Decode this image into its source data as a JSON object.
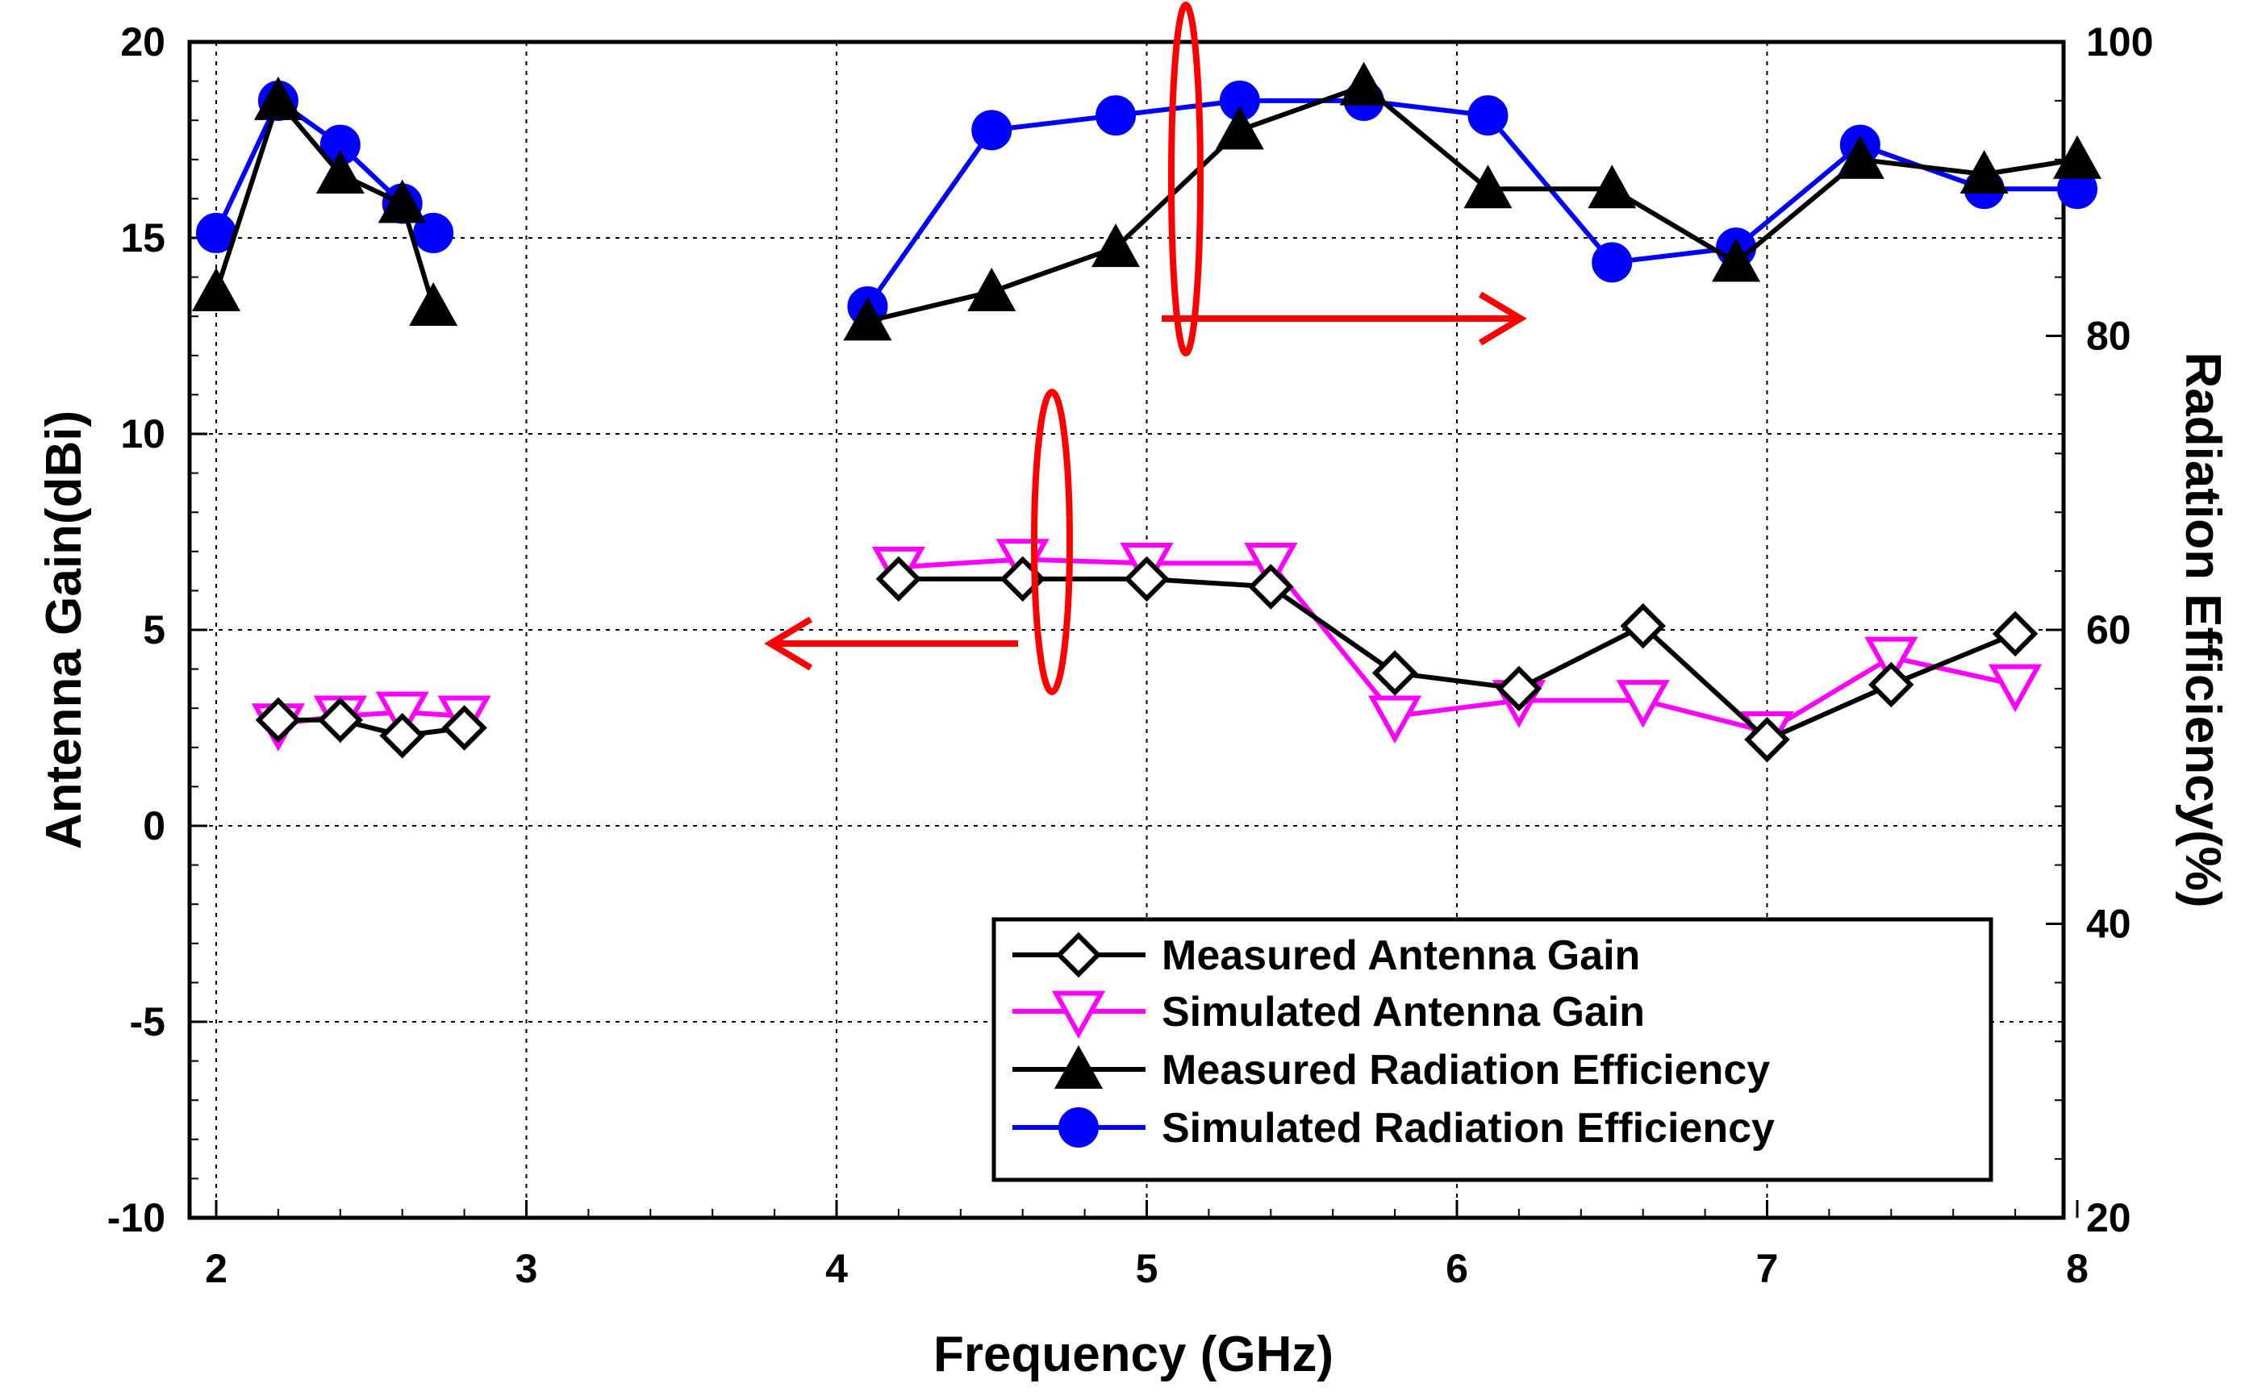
{
  "chart_data": {
    "type": "line",
    "xlabel": "Frequency (GHz)",
    "ylabel_left": "Antenna Gain(dBi)",
    "ylabel_right": "Radiation Efficiency(%)",
    "xlim": [
      2,
      8
    ],
    "ylim_left": [
      -10,
      20
    ],
    "ylim_right": [
      20,
      100
    ],
    "x_ticks": [
      "2",
      "3",
      "4",
      "5",
      "6",
      "7",
      "8"
    ],
    "y_left_ticks": [
      "20",
      "15",
      "10",
      "5",
      "0",
      "-5",
      "-10"
    ],
    "y_right_ticks": [
      "100",
      "80",
      "60",
      "40",
      "20"
    ],
    "grid": true,
    "legend_position": "bottom-right",
    "series": [
      {
        "name": "Measured Antenna Gain",
        "axis": "left",
        "color": "#000000",
        "marker": "diamond",
        "segments": [
          {
            "x": [
              2.2,
              2.4,
              2.6,
              2.8
            ],
            "y": [
              2.7,
              2.7,
              2.3,
              2.5
            ]
          },
          {
            "x": [
              4.2,
              4.6,
              5.0,
              5.4,
              5.8,
              6.2,
              6.6,
              7.0,
              7.4,
              7.8
            ],
            "y": [
              6.3,
              6.3,
              6.3,
              6.1,
              3.9,
              3.5,
              5.1,
              2.2,
              3.6,
              4.9
            ]
          }
        ]
      },
      {
        "name": "Simulated Antenna Gain",
        "axis": "left",
        "color": "#ff00ff",
        "marker": "triangle-down",
        "segments": [
          {
            "x": [
              2.2,
              2.4,
              2.6,
              2.8
            ],
            "y": [
              2.6,
              2.8,
              2.9,
              2.8
            ]
          },
          {
            "x": [
              4.2,
              4.6,
              5.0,
              5.4,
              5.8,
              6.2,
              6.6,
              7.0,
              7.4,
              7.8
            ],
            "y": [
              6.6,
              6.8,
              6.7,
              6.7,
              2.8,
              3.2,
              3.2,
              2.4,
              4.3,
              3.6
            ]
          }
        ]
      },
      {
        "name": "Measured Radiation Efficiency",
        "axis": "right",
        "color": "#000000",
        "marker": "triangle-up",
        "segments": [
          {
            "x": [
              2.0,
              2.2,
              2.4,
              2.6,
              2.7
            ],
            "y": [
              83,
              96,
              91,
              89,
              82
            ]
          },
          {
            "x": [
              4.1,
              4.5,
              4.9,
              5.3,
              5.7,
              6.1,
              6.5,
              6.9,
              7.3,
              7.7,
              8.0
            ],
            "y": [
              81,
              83,
              86,
              94,
              97,
              90,
              90,
              85,
              92,
              91,
              92
            ]
          }
        ]
      },
      {
        "name": "Simulated Radiation Efficiency",
        "axis": "right",
        "color": "#0000ff",
        "marker": "circle",
        "segments": [
          {
            "x": [
              2.0,
              2.2,
              2.4,
              2.6,
              2.7
            ],
            "y": [
              87,
              96,
              93,
              89,
              87
            ]
          },
          {
            "x": [
              4.1,
              4.5,
              4.9,
              5.3,
              5.7,
              6.1,
              6.5,
              6.9,
              7.3,
              7.7,
              8.0
            ],
            "y": [
              82,
              94,
              95,
              96,
              96,
              95,
              85,
              86,
              93,
              90,
              90
            ]
          }
        ]
      }
    ],
    "annotations": [
      {
        "type": "ellipse-arrow",
        "color": "#ff0000",
        "points_to": "right-axis",
        "near_x": 5.1,
        "near_y_left": 15
      },
      {
        "type": "ellipse-arrow",
        "color": "#ff0000",
        "points_to": "left-axis",
        "near_x": 4.7,
        "near_y_left": 6.5
      }
    ]
  }
}
